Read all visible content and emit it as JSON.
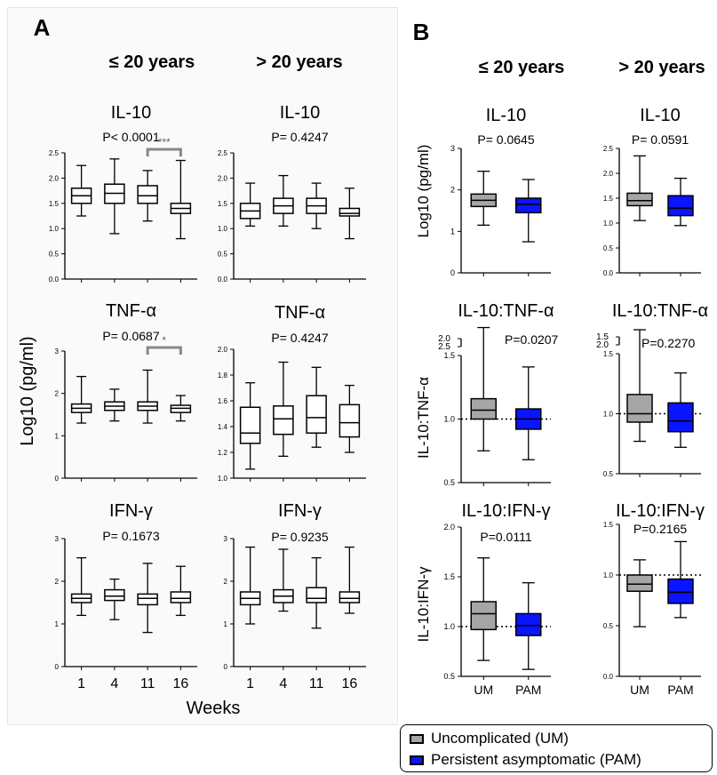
{
  "panel_labels": {
    "a": "A",
    "b": "B"
  },
  "headers": {
    "le20": "≤ 20 years",
    "gt20": "> 20 years"
  },
  "legend": {
    "um": {
      "label": "Uncomplicated (UM)",
      "color": "#a6a6a6"
    },
    "pam": {
      "label": "Persistent asymptomatic (PAM)",
      "color": "#0a14ff"
    }
  },
  "chart_data": [
    {
      "id": "a1",
      "type": "box",
      "title": "IL-10",
      "pvalue": "P< 0.0001",
      "ylim": [
        0,
        2.5
      ],
      "yticks": [
        "0.0",
        "0.5",
        "1.0",
        "1.5",
        "2.0",
        "2.5"
      ],
      "categories": [
        "1",
        "4",
        "11",
        "16"
      ],
      "boxes": [
        [
          1.25,
          1.5,
          1.65,
          1.8,
          2.25
        ],
        [
          0.9,
          1.5,
          1.7,
          1.88,
          2.38
        ],
        [
          1.15,
          1.5,
          1.65,
          1.85,
          2.15
        ],
        [
          0.8,
          1.3,
          1.4,
          1.5,
          2.35
        ]
      ],
      "bracket": {
        "from": 2,
        "to": 3,
        "label": "***"
      }
    },
    {
      "id": "a2",
      "type": "box",
      "title": "IL-10",
      "pvalue": "P= 0.4247",
      "ylim": [
        0,
        2.5
      ],
      "yticks": [
        "0.0",
        "0.5",
        "1.0",
        "1.5",
        "2.0",
        "2.5"
      ],
      "categories": [
        "1",
        "4",
        "11",
        "16"
      ],
      "boxes": [
        [
          1.05,
          1.2,
          1.35,
          1.5,
          1.9
        ],
        [
          1.05,
          1.3,
          1.45,
          1.6,
          2.05
        ],
        [
          1.0,
          1.3,
          1.45,
          1.6,
          1.9
        ],
        [
          0.8,
          1.25,
          1.3,
          1.4,
          1.8
        ]
      ]
    },
    {
      "id": "a3",
      "type": "box",
      "title": "TNF-α",
      "pvalue": "P= 0.0687",
      "ylim": [
        0,
        3
      ],
      "yticks": [
        "0",
        "1",
        "2",
        "3"
      ],
      "categories": [
        "1",
        "4",
        "11",
        "16"
      ],
      "boxes": [
        [
          1.3,
          1.55,
          1.65,
          1.75,
          2.4
        ],
        [
          1.35,
          1.6,
          1.7,
          1.8,
          2.1
        ],
        [
          1.3,
          1.6,
          1.7,
          1.8,
          2.55
        ],
        [
          1.35,
          1.55,
          1.65,
          1.72,
          1.95
        ]
      ],
      "bracket": {
        "from": 2,
        "to": 3,
        "label": "*"
      }
    },
    {
      "id": "a4",
      "type": "box",
      "title": "TNF-α",
      "pvalue": "P= 0.4247",
      "ylim": [
        1,
        2
      ],
      "yticks": [
        "1.0",
        "1.2",
        "1.4",
        "1.6",
        "1.8",
        "2.0"
      ],
      "categories": [
        "1",
        "4",
        "11",
        "16"
      ],
      "boxes": [
        [
          1.07,
          1.27,
          1.35,
          1.55,
          1.74
        ],
        [
          1.17,
          1.34,
          1.46,
          1.56,
          1.9
        ],
        [
          1.24,
          1.35,
          1.47,
          1.64,
          1.86
        ],
        [
          1.2,
          1.32,
          1.43,
          1.57,
          1.72
        ]
      ]
    },
    {
      "id": "a5",
      "type": "box",
      "title": "IFN-γ",
      "pvalue": "P= 0.1673",
      "ylim": [
        0,
        3
      ],
      "yticks": [
        "0",
        "1",
        "2",
        "3"
      ],
      "categories": [
        "1",
        "4",
        "11",
        "16"
      ],
      "boxes": [
        [
          1.2,
          1.5,
          1.6,
          1.7,
          2.55
        ],
        [
          1.1,
          1.55,
          1.65,
          1.8,
          2.05
        ],
        [
          0.8,
          1.45,
          1.6,
          1.7,
          2.42
        ],
        [
          1.2,
          1.5,
          1.6,
          1.75,
          2.35
        ]
      ]
    },
    {
      "id": "a6",
      "type": "box",
      "title": "IFN-γ",
      "pvalue": "P= 0.9235",
      "ylim": [
        0,
        3
      ],
      "yticks": [
        "0",
        "1",
        "2",
        "3"
      ],
      "categories": [
        "1",
        "4",
        "11",
        "16"
      ],
      "boxes": [
        [
          1.0,
          1.45,
          1.6,
          1.75,
          2.8
        ],
        [
          1.3,
          1.5,
          1.65,
          1.8,
          2.75
        ],
        [
          0.9,
          1.5,
          1.6,
          1.85,
          2.55
        ],
        [
          1.25,
          1.5,
          1.6,
          1.75,
          2.8
        ]
      ]
    },
    {
      "id": "b1",
      "type": "box",
      "title": "IL-10",
      "pvalue": "P= 0.0645",
      "ylim": [
        0,
        3
      ],
      "yticks": [
        "0",
        "1",
        "2",
        "3"
      ],
      "categories": [
        "UM",
        "PAM"
      ],
      "boxes": [
        [
          1.15,
          1.6,
          1.75,
          1.9,
          2.45
        ],
        [
          0.75,
          1.45,
          1.65,
          1.8,
          2.25
        ]
      ]
    },
    {
      "id": "b2",
      "type": "box",
      "title": "IL-10",
      "pvalue": "P= 0.0591",
      "ylim": [
        0,
        2.5
      ],
      "yticks": [
        "0.0",
        "0.5",
        "1.0",
        "1.5",
        "2.0",
        "2.5"
      ],
      "categories": [
        "UM",
        "PAM"
      ],
      "boxes": [
        [
          1.05,
          1.35,
          1.45,
          1.6,
          2.35
        ],
        [
          0.95,
          1.15,
          1.3,
          1.55,
          1.9
        ]
      ]
    },
    {
      "id": "b3",
      "type": "box",
      "title": "IL-10:TNF-α",
      "pvalue": "P=0.0207",
      "ylim": [
        0.5,
        1.5
      ],
      "yticks": [
        "0.5",
        "1.0",
        "1.5"
      ],
      "broken_ticks": [
        "2.0",
        "2.5"
      ],
      "categories": [
        "UM",
        "PAM"
      ],
      "refline": 1.0,
      "boxes": [
        [
          0.75,
          1.0,
          1.07,
          1.16,
          1.72
        ],
        [
          0.68,
          0.92,
          1.0,
          1.08,
          1.41
        ]
      ]
    },
    {
      "id": "b4",
      "type": "box",
      "title": "IL-10:TNF-α",
      "pvalue": "P=0.2270",
      "ylim": [
        0.5,
        1.5
      ],
      "yticks": [
        "0.5",
        "1.0",
        "1.5"
      ],
      "broken_ticks": [
        "1.5",
        "2.0"
      ],
      "categories": [
        "UM",
        "PAM"
      ],
      "refline": 1.0,
      "boxes": [
        [
          0.77,
          0.93,
          1.0,
          1.16,
          1.7
        ],
        [
          0.72,
          0.85,
          0.94,
          1.09,
          1.34
        ]
      ]
    },
    {
      "id": "b5",
      "type": "box",
      "title": "IL-10:IFN-γ",
      "pvalue": "P=0.0111",
      "ylim": [
        0.5,
        2.0
      ],
      "yticks": [
        "0.5",
        "1.0",
        "1.5",
        "2.0"
      ],
      "categories": [
        "UM",
        "PAM"
      ],
      "refline": 1.0,
      "boxes": [
        [
          0.66,
          0.97,
          1.13,
          1.25,
          1.69
        ],
        [
          0.57,
          0.91,
          1.01,
          1.13,
          1.44
        ]
      ]
    },
    {
      "id": "b6",
      "type": "box",
      "title": "IL-10:IFN-γ",
      "pvalue": "P=0.2165",
      "ylim": [
        0,
        1.5
      ],
      "yticks": [
        "0.0",
        "0.5",
        "1.0",
        "1.5"
      ],
      "categories": [
        "UM",
        "PAM"
      ],
      "refline": 1.0,
      "boxes": [
        [
          0.49,
          0.84,
          0.91,
          1.0,
          1.15
        ],
        [
          0.58,
          0.72,
          0.83,
          0.96,
          1.33
        ]
      ]
    }
  ],
  "axis_labels": {
    "a_y": "Log10 (pg/ml)",
    "a_x": "Weeks",
    "b_y1": "Log10 (pg/ml)",
    "b_y2": "IL-10:TNF-α",
    "b_y3": "IL-10:IFN-γ"
  }
}
